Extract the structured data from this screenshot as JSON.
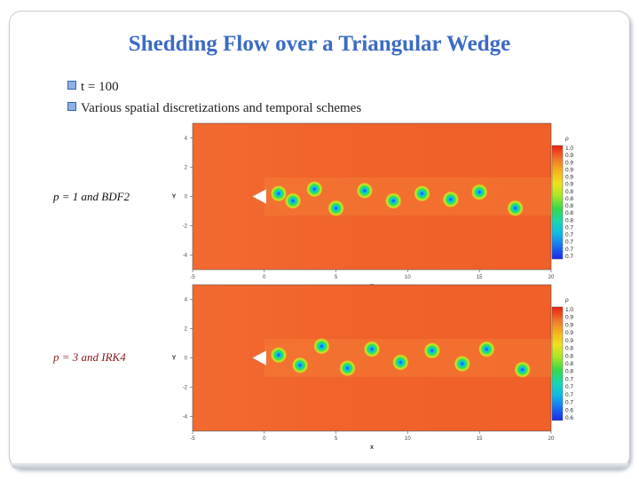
{
  "slide": {
    "title": "Shedding Flow over a Triangular Wedge",
    "bullets": [
      {
        "text": "t = 100"
      },
      {
        "text": "Various spatial discretizations and temporal schemes"
      }
    ]
  },
  "panels": [
    {
      "caption": "p = 1 and BDF2",
      "x_ticks": [
        "-5",
        "0",
        "5",
        "10",
        "15",
        "20"
      ],
      "y_ticks": [
        "4",
        "2",
        "0",
        "-2",
        "-4"
      ],
      "xlabel": "x",
      "ylabel": "Y",
      "colorbar_title": "ρ",
      "colorbar_labels": [
        "1.01",
        "0.99",
        "0.97",
        "0.95",
        "0.93",
        "0.91",
        "0.89",
        "0.87",
        "0.85",
        "0.83",
        "0.81",
        "0.79",
        "0.77",
        "0.75",
        "0.73",
        "0.71"
      ],
      "background_color": "#f0622a",
      "vortices": [
        {
          "x": 1.0,
          "y": 0.2
        },
        {
          "x": 2.0,
          "y": -0.3
        },
        {
          "x": 3.5,
          "y": 0.5
        },
        {
          "x": 5.0,
          "y": -0.8
        },
        {
          "x": 7.0,
          "y": 0.4
        },
        {
          "x": 9.0,
          "y": -0.3
        },
        {
          "x": 11.0,
          "y": 0.2
        },
        {
          "x": 13.0,
          "y": -0.2
        },
        {
          "x": 15.0,
          "y": 0.3
        },
        {
          "x": 17.5,
          "y": -0.8
        }
      ]
    },
    {
      "caption": "p = 3 and IRK4",
      "x_ticks": [
        "-5",
        "0",
        "5",
        "10",
        "15",
        "20"
      ],
      "y_ticks": [
        "4",
        "2",
        "0",
        "-2",
        "-4"
      ],
      "xlabel": "x",
      "ylabel": "Y",
      "colorbar_title": "ρ",
      "colorbar_labels": [
        "1.005",
        "0.98",
        "0.955",
        "0.93",
        "0.905",
        "0.88",
        "0.855",
        "0.83",
        "0.805",
        "0.78",
        "0.755",
        "0.73",
        "0.705",
        "0.68",
        "0.655"
      ],
      "background_color": "#f0622a",
      "vortices": [
        {
          "x": 1.0,
          "y": 0.2
        },
        {
          "x": 2.5,
          "y": -0.5
        },
        {
          "x": 4.0,
          "y": 0.8
        },
        {
          "x": 5.8,
          "y": -0.7
        },
        {
          "x": 7.5,
          "y": 0.6
        },
        {
          "x": 9.5,
          "y": -0.3
        },
        {
          "x": 11.7,
          "y": 0.5
        },
        {
          "x": 13.8,
          "y": -0.4
        },
        {
          "x": 15.5,
          "y": 0.6
        },
        {
          "x": 18.0,
          "y": -0.8
        }
      ]
    }
  ]
}
